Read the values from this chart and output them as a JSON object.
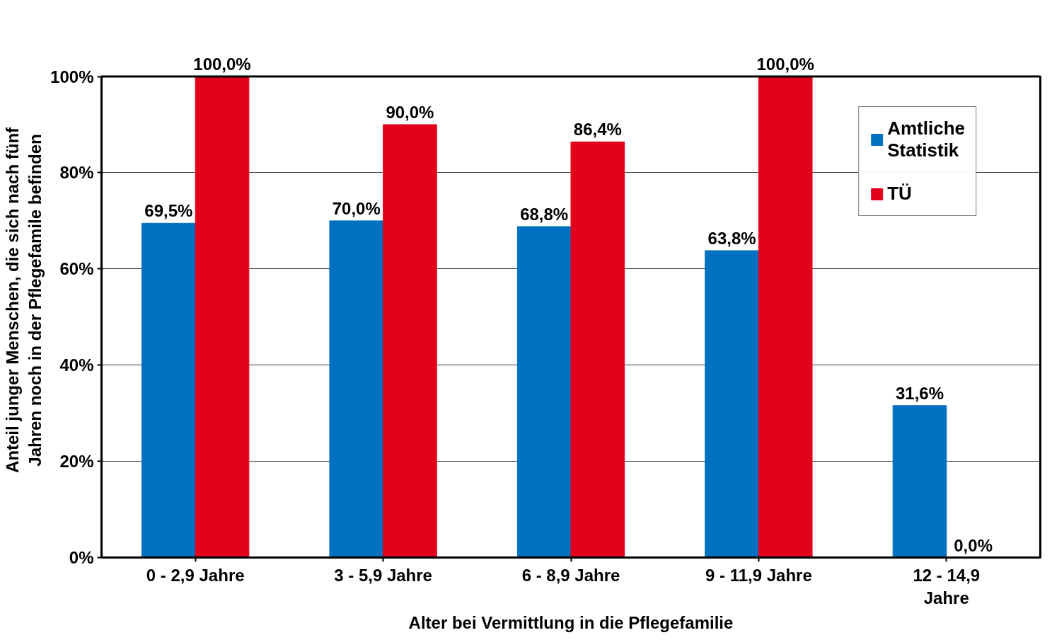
{
  "chart_data": {
    "type": "bar",
    "xlabel": "Alter bei Vermittlung in die Pflegefamilie",
    "ylabel": "Anteil junger Menschen, die sich nach fünf Jahren noch in der Pflegefamile befinden",
    "categories": [
      "0 - 2,9 Jahre",
      "3 - 5,9 Jahre",
      "6 - 8,9 Jahre",
      "9 - 11,9 Jahre",
      "12 - 14,9 Jahre"
    ],
    "series": [
      {
        "name": "Amtliche Statistik",
        "color": "#0070c0",
        "values": [
          69.5,
          70.0,
          68.8,
          63.8,
          31.6
        ],
        "value_labels": [
          "69,5%",
          "70,0%",
          "68,8%",
          "63,8%",
          "31,6%"
        ]
      },
      {
        "name": "TÜ",
        "color": "#e2001a",
        "values": [
          100,
          90,
          86.4,
          100,
          0
        ],
        "value_labels": [
          "100,0%",
          "90,0%",
          "86,4%",
          "100,0%",
          "0,0%"
        ]
      }
    ],
    "ylim": [
      0,
      100
    ],
    "yticks": [
      {
        "value": 0,
        "label": "0%"
      },
      {
        "value": 20,
        "label": "20%"
      },
      {
        "value": 40,
        "label": "40%"
      },
      {
        "value": 60,
        "label": "60%"
      },
      {
        "value": 80,
        "label": "80%"
      },
      {
        "value": 100,
        "label": "100%"
      }
    ],
    "grid": "y",
    "legend": "top right"
  }
}
